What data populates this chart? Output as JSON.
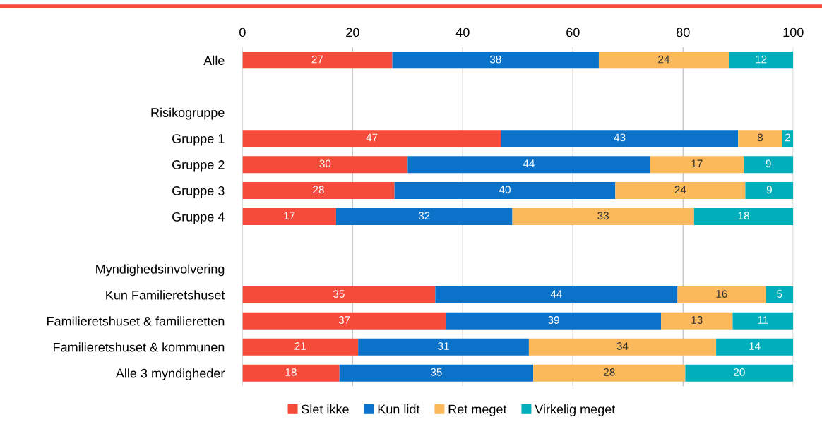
{
  "chart_data": {
    "type": "bar",
    "orientation": "horizontal",
    "stacked": true,
    "categories": [
      "Alle",
      null,
      "Risikogruppe",
      "Gruppe 1",
      "Gruppe 2",
      "Gruppe 3",
      "Gruppe 4",
      null,
      "Myndighedsinvolvering",
      "Kun Familieretshuset",
      "Familieretshuset & familieretten",
      "Familieretshuset & kommunen",
      "Alle 3 myndigheder"
    ],
    "series": [
      {
        "name": "Slet ikke",
        "color": "#f44b3a",
        "values": [
          27.2,
          null,
          null,
          47,
          30,
          27.6,
          17,
          null,
          null,
          35,
          37,
          21,
          17.6
        ],
        "value_labels": [
          "27",
          null,
          null,
          "47",
          "30",
          "28",
          "17",
          null,
          null,
          "35",
          "37",
          "21",
          "18"
        ]
      },
      {
        "name": "Kun lidt",
        "color": "#0a72c8",
        "values": [
          37.5,
          null,
          null,
          43,
          44,
          40.1,
          32,
          null,
          null,
          44,
          39,
          31,
          35.2
        ],
        "value_labels": [
          "38",
          null,
          null,
          "43",
          "44",
          "40",
          "32",
          null,
          null,
          "44",
          "39",
          "31",
          "35"
        ]
      },
      {
        "name": "Ret meget",
        "color": "#fbb95b",
        "values": [
          23.6,
          null,
          null,
          8,
          17,
          23.6,
          33,
          null,
          null,
          16,
          13,
          34,
          27.6
        ],
        "value_labels": [
          "24",
          null,
          null,
          "8",
          "17",
          "24",
          "33",
          null,
          null,
          "16",
          "13",
          "34",
          "28"
        ]
      },
      {
        "name": "Virkelig meget",
        "color": "#00afbb",
        "values": [
          11.7,
          null,
          null,
          2,
          9,
          8.7,
          18,
          null,
          null,
          5,
          11,
          14,
          19.6
        ],
        "value_labels": [
          "12",
          null,
          null,
          "2",
          "9",
          "9",
          "18",
          null,
          null,
          "5",
          "11",
          "14",
          "20"
        ]
      }
    ],
    "xlim": [
      0,
      100
    ],
    "xticks": [
      0,
      20,
      40,
      60,
      80,
      100
    ],
    "grid": "x",
    "legend": "bottom"
  }
}
